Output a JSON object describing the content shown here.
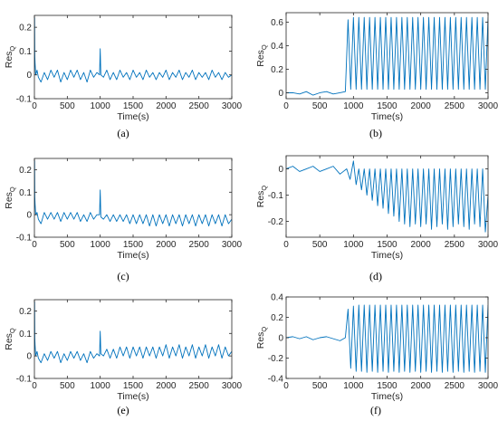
{
  "chart_data": [
    {
      "type": "line",
      "caption": "(a)",
      "xlabel": "Time(s)",
      "ylabel_main": "Res",
      "ylabel_sub": "Q",
      "xlim": [
        0,
        3000
      ],
      "ylim": [
        -0.1,
        0.25
      ],
      "xticks": [
        0,
        500,
        1000,
        1500,
        2000,
        2500,
        3000
      ],
      "yticks": [
        -0.1,
        0,
        0.1,
        0.2
      ],
      "ytick_labels": [
        "-0.1",
        "0",
        "0.1",
        "0.2"
      ],
      "color": "#0072BD",
      "series": [
        {
          "x": [
            0,
            3,
            6,
            10,
            20,
            40,
            60,
            100,
            150,
            200,
            250,
            300,
            350,
            400,
            450,
            500,
            550,
            600,
            650,
            700,
            750,
            800,
            850,
            900,
            950,
            990,
            1000,
            1010,
            1050,
            1100,
            1150,
            1200,
            1250,
            1300,
            1350,
            1400,
            1450,
            1500,
            1550,
            1600,
            1650,
            1700,
            1750,
            1800,
            1850,
            1900,
            1950,
            2000,
            2050,
            2100,
            2150,
            2200,
            2250,
            2300,
            2350,
            2400,
            2450,
            2500,
            2550,
            2600,
            2650,
            2700,
            2750,
            2800,
            2850,
            2900,
            2950,
            3000
          ],
          "y": [
            0.0,
            0.24,
            0.08,
            0.05,
            0.0,
            0.02,
            -0.01,
            -0.03,
            0.01,
            -0.02,
            0.02,
            -0.01,
            0.02,
            -0.03,
            0.01,
            -0.02,
            0.02,
            -0.01,
            0.02,
            -0.02,
            0.01,
            -0.03,
            0.02,
            -0.01,
            0.01,
            0.0,
            0.11,
            0.0,
            -0.01,
            0.02,
            -0.02,
            0.01,
            -0.02,
            0.02,
            -0.01,
            0.01,
            -0.02,
            0.02,
            -0.01,
            0.01,
            -0.02,
            0.02,
            -0.01,
            0.01,
            -0.02,
            0.01,
            -0.01,
            0.02,
            -0.02,
            0.01,
            -0.01,
            0.02,
            -0.02,
            0.01,
            -0.01,
            0.02,
            -0.02,
            0.01,
            -0.01,
            0.01,
            -0.02,
            0.02,
            -0.01,
            0.01,
            -0.02,
            0.01,
            -0.01,
            0.0
          ]
        }
      ]
    },
    {
      "type": "line",
      "caption": "(b)",
      "xlabel": "Time(s)",
      "ylabel_main": "Res",
      "ylabel_sub": "Q",
      "xlim": [
        0,
        3000
      ],
      "ylim": [
        -0.05,
        0.68
      ],
      "xticks": [
        0,
        500,
        1000,
        1500,
        2000,
        2500,
        3000
      ],
      "yticks": [
        0,
        0.2,
        0.4,
        0.6
      ],
      "ytick_labels": [
        "0",
        "0.2",
        "0.4",
        "0.6"
      ],
      "color": "#0072BD",
      "series": [
        {
          "x": [
            0,
            100,
            200,
            300,
            400,
            500,
            600,
            700,
            800,
            880,
            920,
            960,
            1000,
            1040,
            1080,
            1120,
            1160,
            1200,
            1240,
            1280,
            1320,
            1360,
            1400,
            1440,
            1480,
            1520,
            1560,
            1600,
            1640,
            1680,
            1720,
            1760,
            1800,
            1840,
            1880,
            1920,
            1960,
            2000,
            2040,
            2080,
            2120,
            2160,
            2200,
            2240,
            2280,
            2320,
            2360,
            2400,
            2440,
            2480,
            2520,
            2560,
            2600,
            2640,
            2680,
            2720,
            2760,
            2800,
            2840,
            2880,
            2920,
            2960,
            3000
          ],
          "y": [
            0.0,
            0.0,
            -0.01,
            0.01,
            -0.02,
            0.0,
            0.01,
            -0.01,
            0.0,
            0.01,
            0.62,
            0.03,
            0.64,
            0.03,
            0.64,
            0.03,
            0.64,
            0.03,
            0.64,
            0.03,
            0.64,
            0.03,
            0.64,
            0.03,
            0.64,
            0.03,
            0.64,
            0.03,
            0.64,
            0.03,
            0.64,
            0.03,
            0.64,
            0.03,
            0.64,
            0.03,
            0.64,
            0.03,
            0.64,
            0.03,
            0.64,
            0.03,
            0.64,
            0.03,
            0.64,
            0.03,
            0.64,
            0.03,
            0.64,
            0.03,
            0.64,
            0.03,
            0.64,
            0.03,
            0.64,
            0.03,
            0.64,
            0.03,
            0.64,
            0.03,
            0.64,
            0.03,
            0.64
          ]
        }
      ]
    },
    {
      "type": "line",
      "caption": "(c)",
      "xlabel": "Time(s)",
      "ylabel_main": "Res",
      "ylabel_sub": "Q",
      "xlim": [
        0,
        3000
      ],
      "ylim": [
        -0.1,
        0.25
      ],
      "xticks": [
        0,
        500,
        1000,
        1500,
        2000,
        2500,
        3000
      ],
      "yticks": [
        -0.1,
        0,
        0.1,
        0.2
      ],
      "ytick_labels": [
        "-0.1",
        "0",
        "0.1",
        "0.2"
      ],
      "color": "#0072BD",
      "series": [
        {
          "x": [
            0,
            3,
            6,
            10,
            20,
            40,
            60,
            100,
            150,
            200,
            250,
            300,
            350,
            400,
            450,
            500,
            550,
            600,
            650,
            700,
            750,
            800,
            850,
            900,
            950,
            990,
            1000,
            1010,
            1050,
            1100,
            1150,
            1200,
            1250,
            1300,
            1350,
            1400,
            1450,
            1500,
            1550,
            1600,
            1650,
            1700,
            1750,
            1800,
            1850,
            1900,
            1950,
            2000,
            2050,
            2100,
            2150,
            2200,
            2250,
            2300,
            2350,
            2400,
            2450,
            2500,
            2550,
            2600,
            2650,
            2700,
            2750,
            2800,
            2850,
            2900,
            2950,
            3000
          ],
          "y": [
            0.0,
            0.24,
            0.08,
            0.05,
            0.0,
            0.01,
            -0.02,
            -0.04,
            0.01,
            -0.02,
            0.01,
            -0.02,
            0.01,
            -0.03,
            0.01,
            -0.02,
            0.01,
            -0.02,
            0.01,
            -0.03,
            0.0,
            -0.03,
            0.01,
            -0.02,
            0.0,
            0.0,
            0.11,
            -0.01,
            -0.02,
            0.0,
            -0.03,
            0.0,
            -0.03,
            0.0,
            -0.03,
            0.0,
            -0.04,
            0.0,
            -0.04,
            0.0,
            -0.04,
            0.0,
            -0.05,
            0.0,
            -0.05,
            0.0,
            -0.04,
            0.0,
            -0.05,
            0.0,
            -0.04,
            0.0,
            -0.05,
            0.0,
            -0.04,
            0.0,
            -0.05,
            0.0,
            -0.04,
            0.0,
            -0.05,
            0.0,
            -0.04,
            0.0,
            -0.05,
            0.0,
            -0.04,
            -0.02
          ]
        }
      ]
    },
    {
      "type": "line",
      "caption": "(d)",
      "xlabel": "Time(s)",
      "ylabel_main": "Res",
      "ylabel_sub": "Q",
      "xlim": [
        0,
        3000
      ],
      "ylim": [
        -0.26,
        0.05
      ],
      "xticks": [
        0,
        500,
        1000,
        1500,
        2000,
        2500,
        3000
      ],
      "yticks": [
        -0.2,
        -0.1,
        0
      ],
      "ytick_labels": [
        "-0.2",
        "-0.1",
        "0"
      ],
      "color": "#0072BD",
      "series": [
        {
          "x": [
            0,
            100,
            200,
            300,
            400,
            500,
            600,
            700,
            800,
            900,
            950,
            1000,
            1040,
            1080,
            1120,
            1160,
            1200,
            1240,
            1280,
            1320,
            1360,
            1400,
            1440,
            1480,
            1520,
            1560,
            1600,
            1640,
            1680,
            1720,
            1760,
            1800,
            1840,
            1880,
            1920,
            1960,
            2000,
            2040,
            2080,
            2120,
            2160,
            2200,
            2240,
            2280,
            2320,
            2360,
            2400,
            2440,
            2480,
            2520,
            2560,
            2600,
            2640,
            2680,
            2720,
            2760,
            2800,
            2840,
            2880,
            2920,
            2960,
            3000
          ],
          "y": [
            0.0,
            0.01,
            -0.01,
            0.0,
            0.01,
            -0.01,
            0.0,
            0.01,
            -0.02,
            0.0,
            -0.04,
            0.03,
            -0.06,
            0.0,
            -0.08,
            0.0,
            -0.1,
            0.0,
            -0.12,
            0.0,
            -0.14,
            0.0,
            -0.15,
            0.0,
            -0.17,
            0.0,
            -0.18,
            0.0,
            -0.2,
            0.0,
            -0.21,
            0.0,
            -0.22,
            0.0,
            -0.21,
            0.0,
            -0.22,
            0.0,
            -0.21,
            0.0,
            -0.23,
            0.0,
            -0.22,
            0.0,
            -0.21,
            0.0,
            -0.23,
            0.0,
            -0.22,
            0.0,
            -0.21,
            0.0,
            -0.22,
            0.0,
            -0.23,
            0.0,
            -0.21,
            0.0,
            -0.22,
            0.0,
            -0.24,
            -0.1
          ]
        }
      ]
    },
    {
      "type": "line",
      "caption": "(e)",
      "xlabel": "Time(s)",
      "ylabel_main": "Res",
      "ylabel_sub": "Q",
      "xlim": [
        0,
        3000
      ],
      "ylim": [
        -0.1,
        0.25
      ],
      "xticks": [
        0,
        500,
        1000,
        1500,
        2000,
        2500,
        3000
      ],
      "yticks": [
        -0.1,
        0,
        0.1,
        0.2
      ],
      "ytick_labels": [
        "-0.1",
        "0",
        "0.1",
        "0.2"
      ],
      "color": "#0072BD",
      "series": [
        {
          "x": [
            0,
            3,
            6,
            10,
            20,
            40,
            60,
            100,
            150,
            200,
            250,
            300,
            350,
            400,
            450,
            500,
            550,
            600,
            650,
            700,
            750,
            800,
            850,
            900,
            950,
            990,
            1000,
            1010,
            1050,
            1100,
            1150,
            1200,
            1250,
            1300,
            1350,
            1400,
            1450,
            1500,
            1550,
            1600,
            1650,
            1700,
            1750,
            1800,
            1850,
            1900,
            1950,
            2000,
            2050,
            2100,
            2150,
            2200,
            2250,
            2300,
            2350,
            2400,
            2450,
            2500,
            2550,
            2600,
            2650,
            2700,
            2750,
            2800,
            2850,
            2900,
            2950,
            3000
          ],
          "y": [
            0.0,
            0.24,
            0.08,
            0.05,
            0.0,
            0.02,
            -0.01,
            -0.03,
            0.01,
            -0.02,
            0.02,
            -0.01,
            0.02,
            -0.03,
            0.01,
            -0.02,
            0.02,
            -0.01,
            0.02,
            -0.02,
            0.01,
            -0.03,
            0.02,
            -0.01,
            0.01,
            0.0,
            0.11,
            0.01,
            0.0,
            0.03,
            -0.01,
            0.03,
            -0.01,
            0.04,
            0.0,
            0.04,
            -0.01,
            0.04,
            0.0,
            0.04,
            -0.01,
            0.04,
            0.0,
            0.04,
            -0.01,
            0.04,
            0.0,
            0.05,
            -0.01,
            0.04,
            0.0,
            0.05,
            -0.01,
            0.04,
            0.0,
            0.05,
            -0.01,
            0.04,
            0.0,
            0.05,
            -0.01,
            0.04,
            0.0,
            0.05,
            -0.01,
            0.04,
            0.0,
            0.02
          ]
        }
      ]
    },
    {
      "type": "line",
      "caption": "(f)",
      "xlabel": "Time(s)",
      "ylabel_main": "Res",
      "ylabel_sub": "Q",
      "xlim": [
        0,
        3000
      ],
      "ylim": [
        -0.4,
        0.4
      ],
      "xticks": [
        0,
        500,
        1000,
        1500,
        2000,
        2500,
        3000
      ],
      "yticks": [
        -0.4,
        -0.2,
        0,
        0.2,
        0.4
      ],
      "ytick_labels": [
        "-0.4",
        "-0.2",
        "0",
        "0.2",
        "0.4"
      ],
      "color": "#0072BD",
      "series": [
        {
          "x": [
            0,
            100,
            200,
            300,
            400,
            500,
            600,
            700,
            800,
            880,
            920,
            960,
            1000,
            1040,
            1080,
            1120,
            1160,
            1200,
            1240,
            1280,
            1320,
            1360,
            1400,
            1440,
            1480,
            1520,
            1560,
            1600,
            1640,
            1680,
            1720,
            1760,
            1800,
            1840,
            1880,
            1920,
            1960,
            2000,
            2040,
            2080,
            2120,
            2160,
            2200,
            2240,
            2280,
            2320,
            2360,
            2400,
            2440,
            2480,
            2520,
            2560,
            2600,
            2640,
            2680,
            2720,
            2760,
            2800,
            2840,
            2880,
            2920,
            2960,
            3000
          ],
          "y": [
            0.0,
            0.01,
            -0.01,
            0.01,
            -0.02,
            0.0,
            0.01,
            -0.01,
            -0.03,
            0.0,
            0.28,
            -0.3,
            0.31,
            -0.33,
            0.32,
            -0.33,
            0.32,
            -0.34,
            0.32,
            -0.33,
            0.32,
            -0.34,
            0.32,
            -0.33,
            0.32,
            -0.34,
            0.32,
            -0.33,
            0.32,
            -0.34,
            0.32,
            -0.33,
            0.32,
            -0.34,
            0.32,
            -0.33,
            0.32,
            -0.34,
            0.32,
            -0.33,
            0.32,
            -0.34,
            0.32,
            -0.33,
            0.32,
            -0.34,
            0.32,
            -0.33,
            0.32,
            -0.34,
            0.32,
            -0.33,
            0.32,
            -0.34,
            0.32,
            -0.33,
            0.32,
            -0.34,
            0.32,
            -0.33,
            0.32,
            -0.34,
            0.32
          ]
        }
      ]
    }
  ]
}
